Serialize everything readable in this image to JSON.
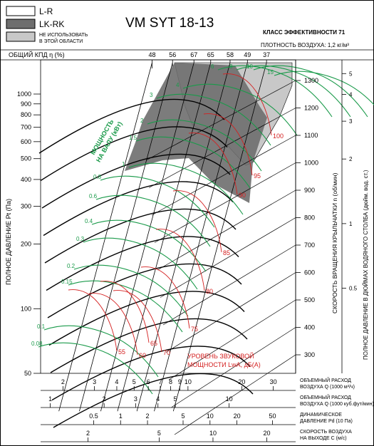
{
  "legend": {
    "items": [
      {
        "label": "L-R",
        "fill": "#ffffff"
      },
      {
        "label": "LK-RK",
        "fill": "#6e6e6e"
      },
      {
        "label": "НЕ ИСПОЛЬЗОВАТЬ В ЭТОЙ ОБЛАСТИ",
        "label_line1": "НЕ ИСПОЛЬЗОВАТЬ",
        "label_line2": "В ЭТОЙ ОБЛАСТИ",
        "fill": "#c8c8c8"
      }
    ]
  },
  "header": {
    "model": "VM SYT 18-13",
    "efficiency_class": "КЛАСС ЭФФЕКТИВНОСТИ 71",
    "air_density": "ПЛОТНОСТЬ ВОЗДУХА: 1,2 кг/м³",
    "efficiency_axis_label": "ОБЩИЙ КПД η (%)"
  },
  "colors": {
    "power_curves": "#1a9a4a",
    "sound_curves": "#d42020",
    "lines": "#000000",
    "lk_rk_region": "#6e6e6e",
    "forbidden_region": "#c8c8c8"
  },
  "chart_data": {
    "type": "line",
    "title": "VM SYT 18-13",
    "y_left_label": "ПОЛНОЕ ДАВЛЕНИЕ Pt (Па)",
    "y_left_ticks": [
      50,
      100,
      200,
      300,
      400,
      500,
      600,
      700,
      800,
      900,
      1000
    ],
    "y_left_scale": "log",
    "efficiency_ticks": [
      48,
      56,
      67,
      65,
      58,
      49,
      37
    ],
    "rpm_label": "СКОРОСТЬ ВРАЩЕНИЯ КРЫЛЬЧАТКИ n (об/мин)",
    "rpm_ticks": [
      300,
      400,
      500,
      600,
      700,
      800,
      900,
      1000,
      1100,
      1200,
      1300
    ],
    "inch_label": "ПОЛНОЕ ДАВЛЕНИЕ В ДЮЙМАХ ВОДЯНОГО СТОЛБА (дюйм. вод. ст.)",
    "inch_ticks": [
      "0.5",
      "1",
      "2",
      "3",
      "4",
      "5"
    ],
    "power_label": "МОЩНОСТЬ НА ВАЛУ (кВт)",
    "power_label_line1": "МОЩНОСТЬ",
    "power_label_line2": "НА ВАЛУ (кВт)",
    "power_values": [
      0.08,
      0.1,
      0.15,
      0.2,
      0.3,
      0.4,
      0.6,
      0.8,
      1,
      1.5,
      2,
      3,
      4,
      6,
      8,
      10,
      15
    ],
    "sound_label": "УРОВЕНЬ ЗВУКОВОЙ МОЩНОСТИ LwA, дБ(А)",
    "sound_label_line1": "УРОВЕНЬ ЗВУКОВОЙ",
    "sound_label_line2": "МОЩНОСТИ LwA, дБ(А)",
    "sound_values": [
      55,
      60,
      65,
      70,
      75,
      80,
      85,
      90,
      95,
      100
    ],
    "axes": [
      {
        "label": "ОБЪЕМНЫЙ РАСХОД ВОЗДУХА Q (1000 м³/ч)",
        "label_line1": "ОБЪЕМНЫЙ РАСХОД",
        "label_line2": "ВОЗДУХА Q (1000 м³/ч)",
        "ticks": [
          "2",
          "3",
          "4",
          "5",
          "6",
          "7",
          "8",
          "9",
          "10",
          "20",
          "30"
        ]
      },
      {
        "label": "ОБЪЕМНЫЙ РАСХОД ВОЗДУХА Q (1000 куб.футы/мин)",
        "label_line1": "ОБЪЕМНЫЙ РАСХОД",
        "label_line2": "ВОЗДУХА Q (1000 куб.фут/мин)",
        "ticks": [
          "1",
          "2",
          "3",
          "4",
          "5",
          "10"
        ]
      },
      {
        "label": "ДИНАМИЧЕСКОЕ ДАВЛЕНИЕ Pd (10 Па)",
        "label_line1": "ДИНАМИЧЕСКОЕ",
        "label_line2": "ДАВЛЕНИЕ Pd (10 Па)",
        "ticks": [
          "0.5",
          "1",
          "2",
          "5",
          "10",
          "20",
          "50"
        ]
      },
      {
        "label": "СКОРОСТЬ ВОЗДУХА НА ВЫХОДЕ C (м/с)",
        "label_line1": "СКОРОСТЬ ВОЗДУХА",
        "label_line2": "НА ВЫХОДЕ C (м/с)",
        "ticks": [
          "2",
          "5",
          "10",
          "20"
        ]
      }
    ]
  }
}
